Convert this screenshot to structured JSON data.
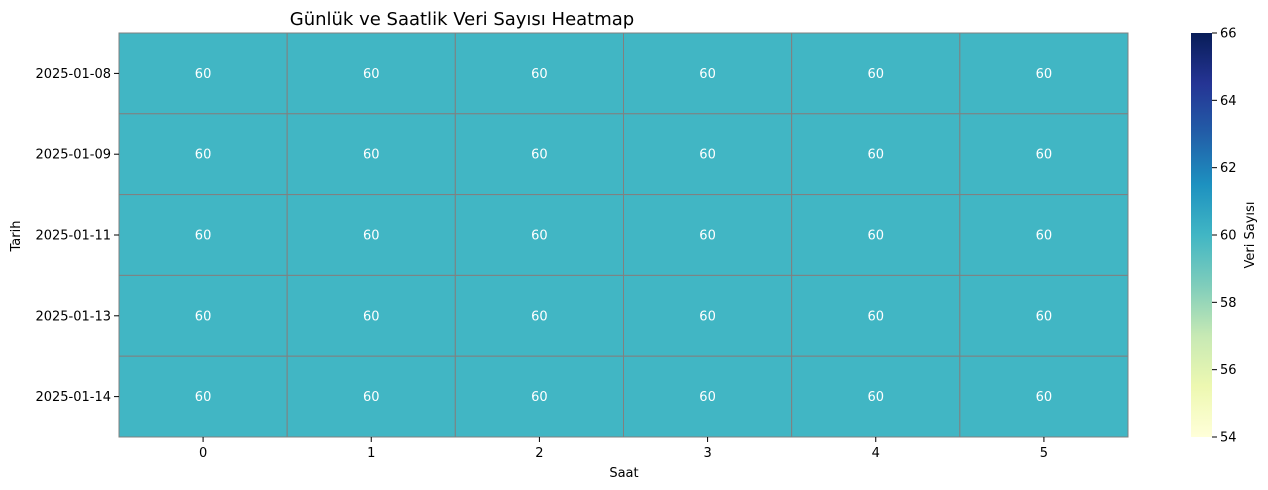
{
  "chart_data": {
    "type": "heatmap",
    "title": "Günlük ve Saatlik Veri Sayısı Heatmap",
    "xlabel": "Saat",
    "ylabel": "Tarih",
    "x_categories": [
      "0",
      "1",
      "2",
      "3",
      "4",
      "5"
    ],
    "y_categories": [
      "2025-01-08",
      "2025-01-09",
      "2025-01-11",
      "2025-01-13",
      "2025-01-14"
    ],
    "values": [
      [
        60,
        60,
        60,
        60,
        60,
        60
      ],
      [
        60,
        60,
        60,
        60,
        60,
        60
      ],
      [
        60,
        60,
        60,
        60,
        60,
        60
      ],
      [
        60,
        60,
        60,
        60,
        60,
        60
      ],
      [
        60,
        60,
        60,
        60,
        60,
        60
      ]
    ],
    "annotations": true,
    "colormap": "YlGnBu",
    "colorbar": {
      "label": "Veri Sayısı",
      "range": [
        54,
        66
      ],
      "ticks": [
        54,
        56,
        58,
        60,
        62,
        64,
        66
      ]
    },
    "cell_border_color": "#808080"
  }
}
